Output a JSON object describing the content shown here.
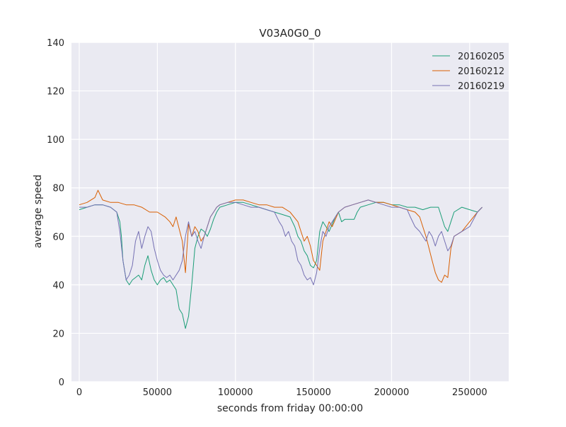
{
  "chart_data": {
    "type": "line",
    "title": "V03A0G0_0",
    "xlabel": "seconds from friday 00:00:00",
    "ylabel": "average speed",
    "xlim": [
      -5000,
      275000
    ],
    "ylim": [
      0,
      140
    ],
    "xticks": [
      0,
      50000,
      100000,
      150000,
      200000,
      250000
    ],
    "yticks": [
      0,
      20,
      40,
      60,
      80,
      100,
      120,
      140
    ],
    "grid": true,
    "legend_position": "top-right",
    "series": [
      {
        "name": "20160205",
        "color": "#1b9e77",
        "x": [
          0,
          5000,
          10000,
          15000,
          20000,
          24000,
          26000,
          27000,
          28000,
          30000,
          32000,
          34000,
          36000,
          38000,
          40000,
          42000,
          44000,
          46000,
          48000,
          50000,
          52000,
          54000,
          56000,
          58000,
          60000,
          62000,
          64000,
          66000,
          68000,
          70000,
          72000,
          74000,
          76000,
          78000,
          80000,
          82000,
          84000,
          86000,
          88000,
          90000,
          95000,
          100000,
          105000,
          110000,
          115000,
          120000,
          125000,
          130000,
          135000,
          138000,
          140000,
          142000,
          144000,
          146000,
          148000,
          150000,
          152000,
          154000,
          156000,
          158000,
          160000,
          162000,
          164000,
          166000,
          168000,
          170000,
          172000,
          176000,
          178000,
          180000,
          185000,
          190000,
          195000,
          200000,
          205000,
          210000,
          215000,
          220000,
          225000,
          230000,
          232000,
          234000,
          236000,
          238000,
          240000,
          245000,
          250000,
          255000,
          258000
        ],
        "y": [
          71,
          72,
          73,
          73,
          72,
          70,
          66,
          60,
          50,
          42,
          40,
          42,
          43,
          44,
          42,
          48,
          52,
          46,
          42,
          40,
          42,
          43,
          41,
          42,
          40,
          38,
          30,
          28,
          22,
          27,
          40,
          55,
          60,
          63,
          62,
          60,
          63,
          67,
          70,
          72,
          73,
          74,
          74,
          73,
          72,
          71,
          70,
          69,
          68,
          64,
          60,
          58,
          54,
          52,
          48,
          47,
          50,
          62,
          66,
          64,
          62,
          65,
          68,
          70,
          66,
          67,
          67,
          67,
          70,
          72,
          73,
          74,
          74,
          73,
          73,
          72,
          72,
          71,
          72,
          72,
          68,
          64,
          62,
          66,
          70,
          72,
          71,
          70,
          72
        ]
      },
      {
        "name": "20160212",
        "color": "#d95f02",
        "x": [
          0,
          5000,
          10000,
          12000,
          15000,
          20000,
          25000,
          30000,
          35000,
          40000,
          45000,
          50000,
          55000,
          58000,
          60000,
          62000,
          64000,
          66000,
          68000,
          70000,
          72000,
          74000,
          76000,
          78000,
          80000,
          82000,
          84000,
          86000,
          88000,
          90000,
          95000,
          100000,
          105000,
          110000,
          115000,
          120000,
          125000,
          130000,
          135000,
          140000,
          142000,
          144000,
          146000,
          148000,
          150000,
          152000,
          154000,
          156000,
          158000,
          160000,
          162000,
          164000,
          166000,
          168000,
          170000,
          175000,
          180000,
          185000,
          190000,
          195000,
          200000,
          205000,
          210000,
          215000,
          218000,
          220000,
          222000,
          224000,
          226000,
          228000,
          230000,
          232000,
          234000,
          236000,
          238000,
          240000,
          245000,
          250000,
          255000,
          258000
        ],
        "y": [
          73,
          74,
          76,
          79,
          75,
          74,
          74,
          73,
          73,
          72,
          70,
          70,
          68,
          66,
          64,
          68,
          63,
          58,
          45,
          65,
          60,
          64,
          62,
          58,
          60,
          64,
          68,
          70,
          72,
          73,
          74,
          75,
          75,
          74,
          73,
          73,
          72,
          72,
          70,
          66,
          62,
          58,
          60,
          56,
          50,
          48,
          46,
          58,
          62,
          66,
          64,
          67,
          70,
          71,
          72,
          73,
          74,
          75,
          74,
          74,
          73,
          72,
          71,
          70,
          68,
          64,
          60,
          55,
          50,
          45,
          42,
          41,
          44,
          43,
          55,
          60,
          62,
          66,
          70,
          72
        ]
      },
      {
        "name": "20160219",
        "color": "#7570b3",
        "x": [
          0,
          5000,
          10000,
          15000,
          20000,
          24000,
          26000,
          28000,
          30000,
          32000,
          34000,
          36000,
          38000,
          40000,
          42000,
          44000,
          46000,
          48000,
          50000,
          52000,
          54000,
          56000,
          58000,
          60000,
          62000,
          64000,
          66000,
          68000,
          70000,
          72000,
          74000,
          76000,
          78000,
          80000,
          82000,
          84000,
          86000,
          88000,
          90000,
          95000,
          100000,
          105000,
          110000,
          115000,
          120000,
          125000,
          128000,
          130000,
          132000,
          134000,
          136000,
          138000,
          140000,
          142000,
          144000,
          146000,
          148000,
          150000,
          152000,
          154000,
          156000,
          158000,
          160000,
          162000,
          164000,
          166000,
          168000,
          170000,
          175000,
          180000,
          185000,
          190000,
          195000,
          200000,
          205000,
          210000,
          212000,
          215000,
          218000,
          220000,
          222000,
          224000,
          226000,
          228000,
          230000,
          232000,
          234000,
          236000,
          238000,
          240000,
          245000,
          250000,
          255000,
          258000
        ],
        "y": [
          72,
          72,
          73,
          73,
          72,
          70,
          62,
          50,
          42,
          44,
          48,
          58,
          62,
          55,
          60,
          64,
          62,
          55,
          50,
          46,
          44,
          43,
          44,
          42,
          44,
          46,
          50,
          60,
          66,
          60,
          62,
          58,
          55,
          60,
          64,
          68,
          70,
          72,
          73,
          74,
          74,
          73,
          72,
          72,
          71,
          70,
          66,
          64,
          60,
          62,
          58,
          56,
          50,
          48,
          44,
          42,
          43,
          40,
          45,
          55,
          62,
          60,
          64,
          66,
          68,
          70,
          71,
          72,
          73,
          74,
          75,
          74,
          73,
          72,
          72,
          71,
          68,
          64,
          62,
          60,
          58,
          62,
          60,
          56,
          60,
          62,
          58,
          54,
          56,
          60,
          62,
          64,
          70,
          72
        ]
      }
    ]
  }
}
